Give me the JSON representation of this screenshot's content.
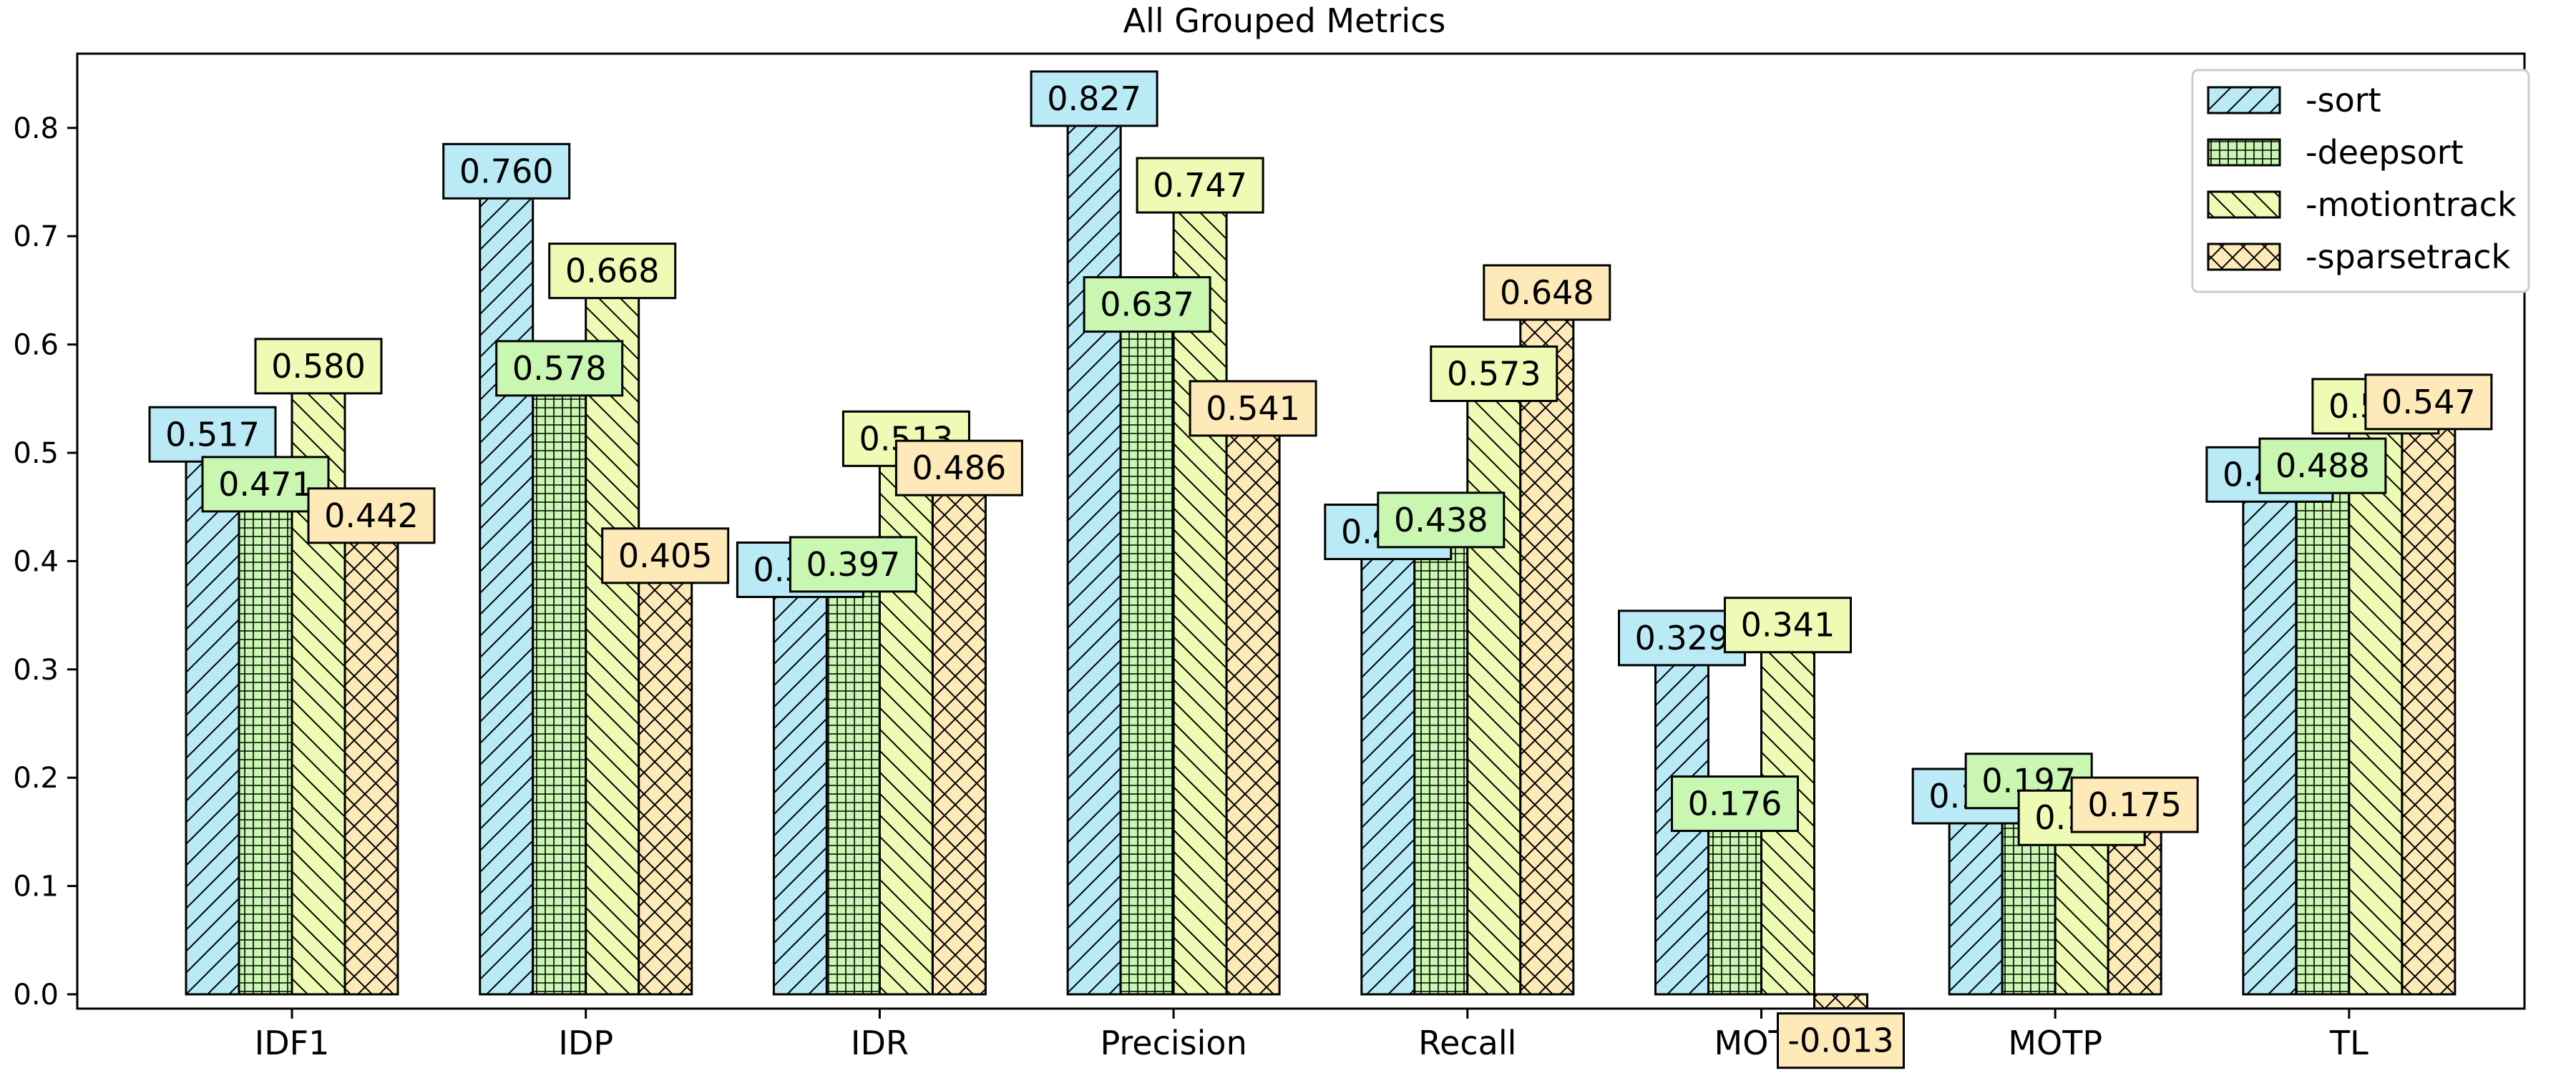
{
  "chart_data": {
    "type": "bar",
    "title": "All Grouped Metrics",
    "xlabel": "",
    "ylabel": "",
    "categories": [
      "IDF1",
      "IDP",
      "IDR",
      "Precision",
      "Recall",
      "MOTA",
      "MOTP",
      "TL"
    ],
    "ylim": [
      -0.013,
      0.885
    ],
    "yticks": [
      "0.0",
      "0.1",
      "0.2",
      "0.3",
      "0.4",
      "0.5",
      "0.6",
      "0.7",
      "0.8"
    ],
    "grid": false,
    "legend_position": "top-right",
    "series": [
      {
        "name": "-sort",
        "color": "#b9eaf6",
        "hatch": "diagonal",
        "values": [
          0.517,
          0.76,
          0.392,
          0.827,
          0.427,
          0.329,
          0.183,
          0.48
        ],
        "labels": [
          "0.517",
          "0.760",
          "0.392",
          "0.827",
          "0.427",
          "0.329",
          "0.183",
          "0.480"
        ]
      },
      {
        "name": "-deepsort",
        "color": "#c9f7b2",
        "hatch": "grid",
        "values": [
          0.471,
          0.578,
          0.397,
          0.637,
          0.438,
          0.176,
          0.197,
          0.488
        ],
        "labels": [
          "0.471",
          "0.578",
          "0.397",
          "0.637",
          "0.438",
          "0.176",
          "0.197",
          "0.488"
        ]
      },
      {
        "name": "-motiontrack",
        "color": "#eefbb4",
        "hatch": "backdiagonal",
        "values": [
          0.58,
          0.668,
          0.513,
          0.747,
          0.573,
          0.341,
          0.163,
          0.543
        ],
        "labels": [
          "0.580",
          "0.668",
          "0.513",
          "0.747",
          "0.573",
          "0.341",
          "0.163",
          "0.543"
        ]
      },
      {
        "name": "-sparsetrack",
        "color": "#fdeab8",
        "hatch": "crosshatch",
        "values": [
          0.442,
          0.405,
          0.486,
          0.541,
          0.648,
          -0.013,
          0.175,
          0.547
        ],
        "labels": [
          "0.442",
          "0.405",
          "0.486",
          "0.541",
          "0.648",
          "-0.013",
          "0.175",
          "0.547"
        ]
      }
    ]
  }
}
